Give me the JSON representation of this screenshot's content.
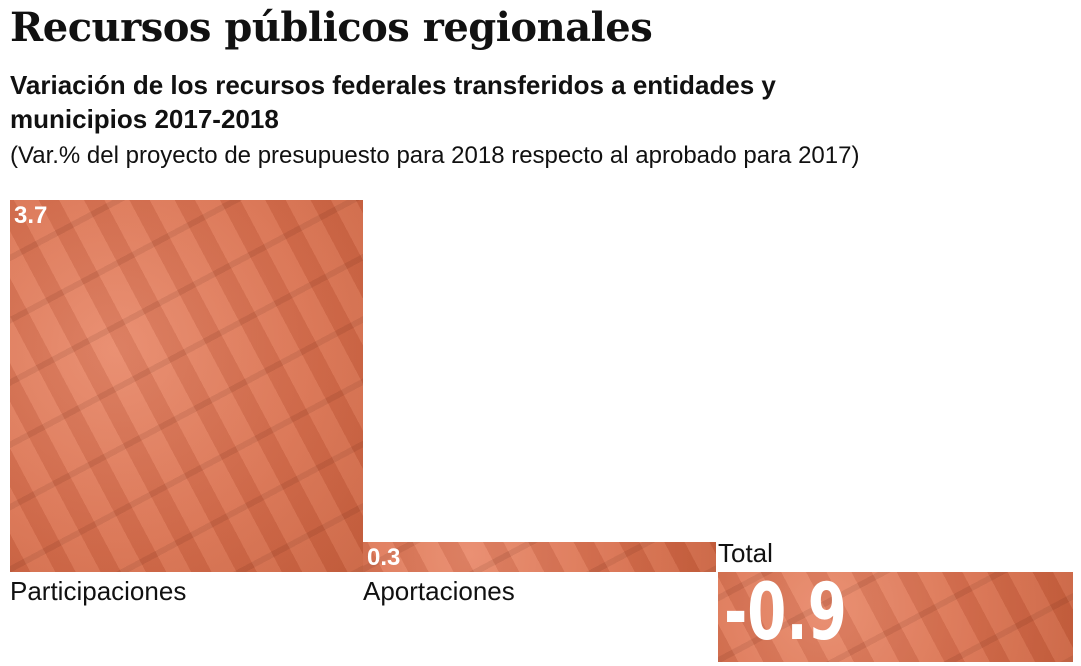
{
  "header": {
    "title": "Recursos públicos regionales",
    "subtitle": "Variación de los recursos federales transferidos a entidades y municipios 2017-2018",
    "note": "(Var.% del proyecto de presupuesto para 2018 respecto al aprobado para 2017)"
  },
  "chart_data": {
    "type": "bar",
    "title": "Recursos públicos regionales",
    "subtitle": "Variación de los recursos federales transferidos a entidades y municipios 2017-2018",
    "ylabel": "Var.%",
    "categories": [
      "Participaciones",
      "Aportaciones",
      "Total"
    ],
    "values": [
      3.7,
      0.3,
      -0.9
    ],
    "value_labels": [
      "3.7",
      "0.3",
      "-0.9"
    ],
    "ylim": [
      -0.9,
      3.7
    ],
    "grid": false,
    "bar_color": "#d9765a"
  }
}
